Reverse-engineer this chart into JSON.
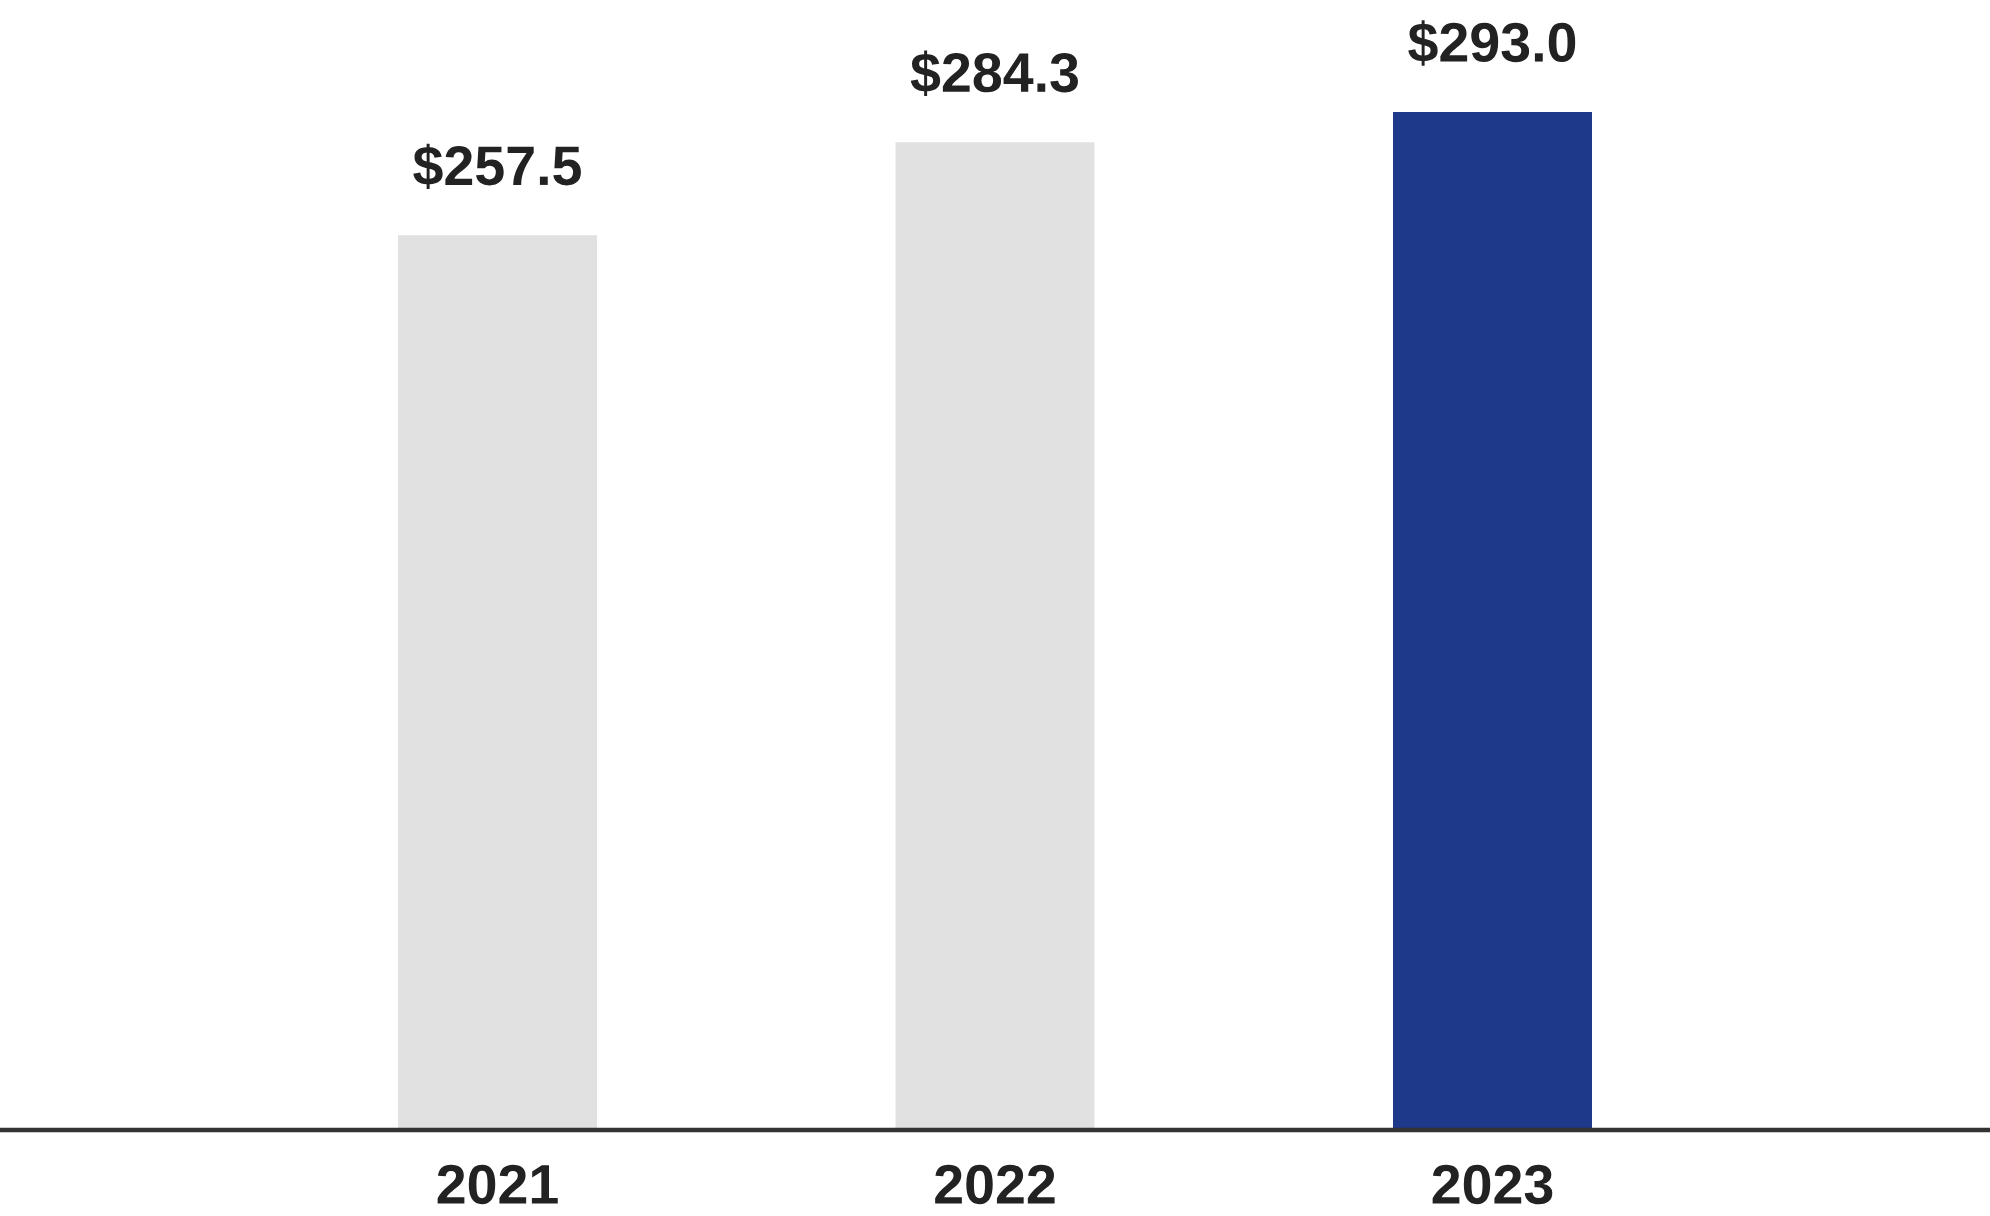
{
  "chart_data": {
    "type": "bar",
    "categories": [
      "2021",
      "2022",
      "2023"
    ],
    "values": [
      257.5,
      284.3,
      293.0
    ],
    "colors": [
      "#e1e1e1",
      "#e1e1e1",
      "#1f398a"
    ],
    "value_labels": [
      "$257.5",
      "$284.3",
      "$293.0"
    ],
    "tick_labels": "x"
  }
}
